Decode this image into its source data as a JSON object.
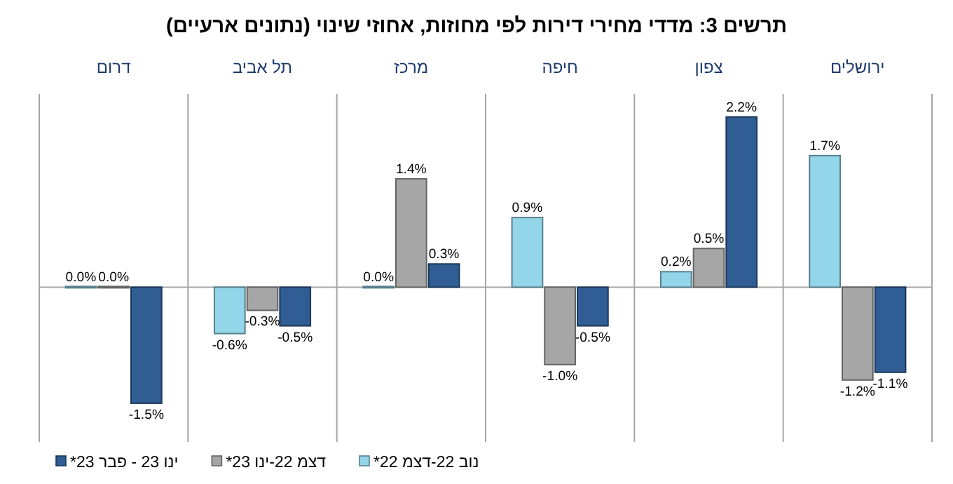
{
  "chart_data": {
    "type": "bar",
    "title": "תרשים 3: מדדי מחירי דירות לפי מחוזות, אחוזי שינוי (נתונים ארעיים)",
    "categories": [
      "דרום",
      "תל אביב",
      "מרכז",
      "חיפה",
      "צפון",
      "ירושלים"
    ],
    "series": [
      {
        "name": "נוב 22-דצמ 22*",
        "color": "#93d5e9",
        "values": [
          0.0,
          -0.6,
          0.0,
          0.9,
          0.2,
          1.7
        ],
        "value_labels": [
          "0.0%",
          "-0.6%",
          "0.0%",
          "0.9%",
          "0.2%",
          "1.7%"
        ]
      },
      {
        "name": "דצמ 22-ינו 23*",
        "color": "#a6a6a6",
        "values": [
          0.0,
          -0.3,
          1.4,
          -1.0,
          0.5,
          -1.2
        ],
        "value_labels": [
          "0.0%",
          "-0.3%",
          "1.4%",
          "-1.0%",
          "0.5%",
          "-1.2%"
        ]
      },
      {
        "name": "ינו 23 - פבר 23*",
        "color": "#2f5d94",
        "values": [
          -1.5,
          -0.5,
          0.3,
          -0.5,
          2.2,
          -1.1
        ],
        "value_labels": [
          "-1.5%",
          "-0.5%",
          "0.3%",
          "-0.5%",
          "2.2%",
          "-1.1%"
        ]
      }
    ],
    "grid": "x",
    "legend": "bottom left"
  }
}
